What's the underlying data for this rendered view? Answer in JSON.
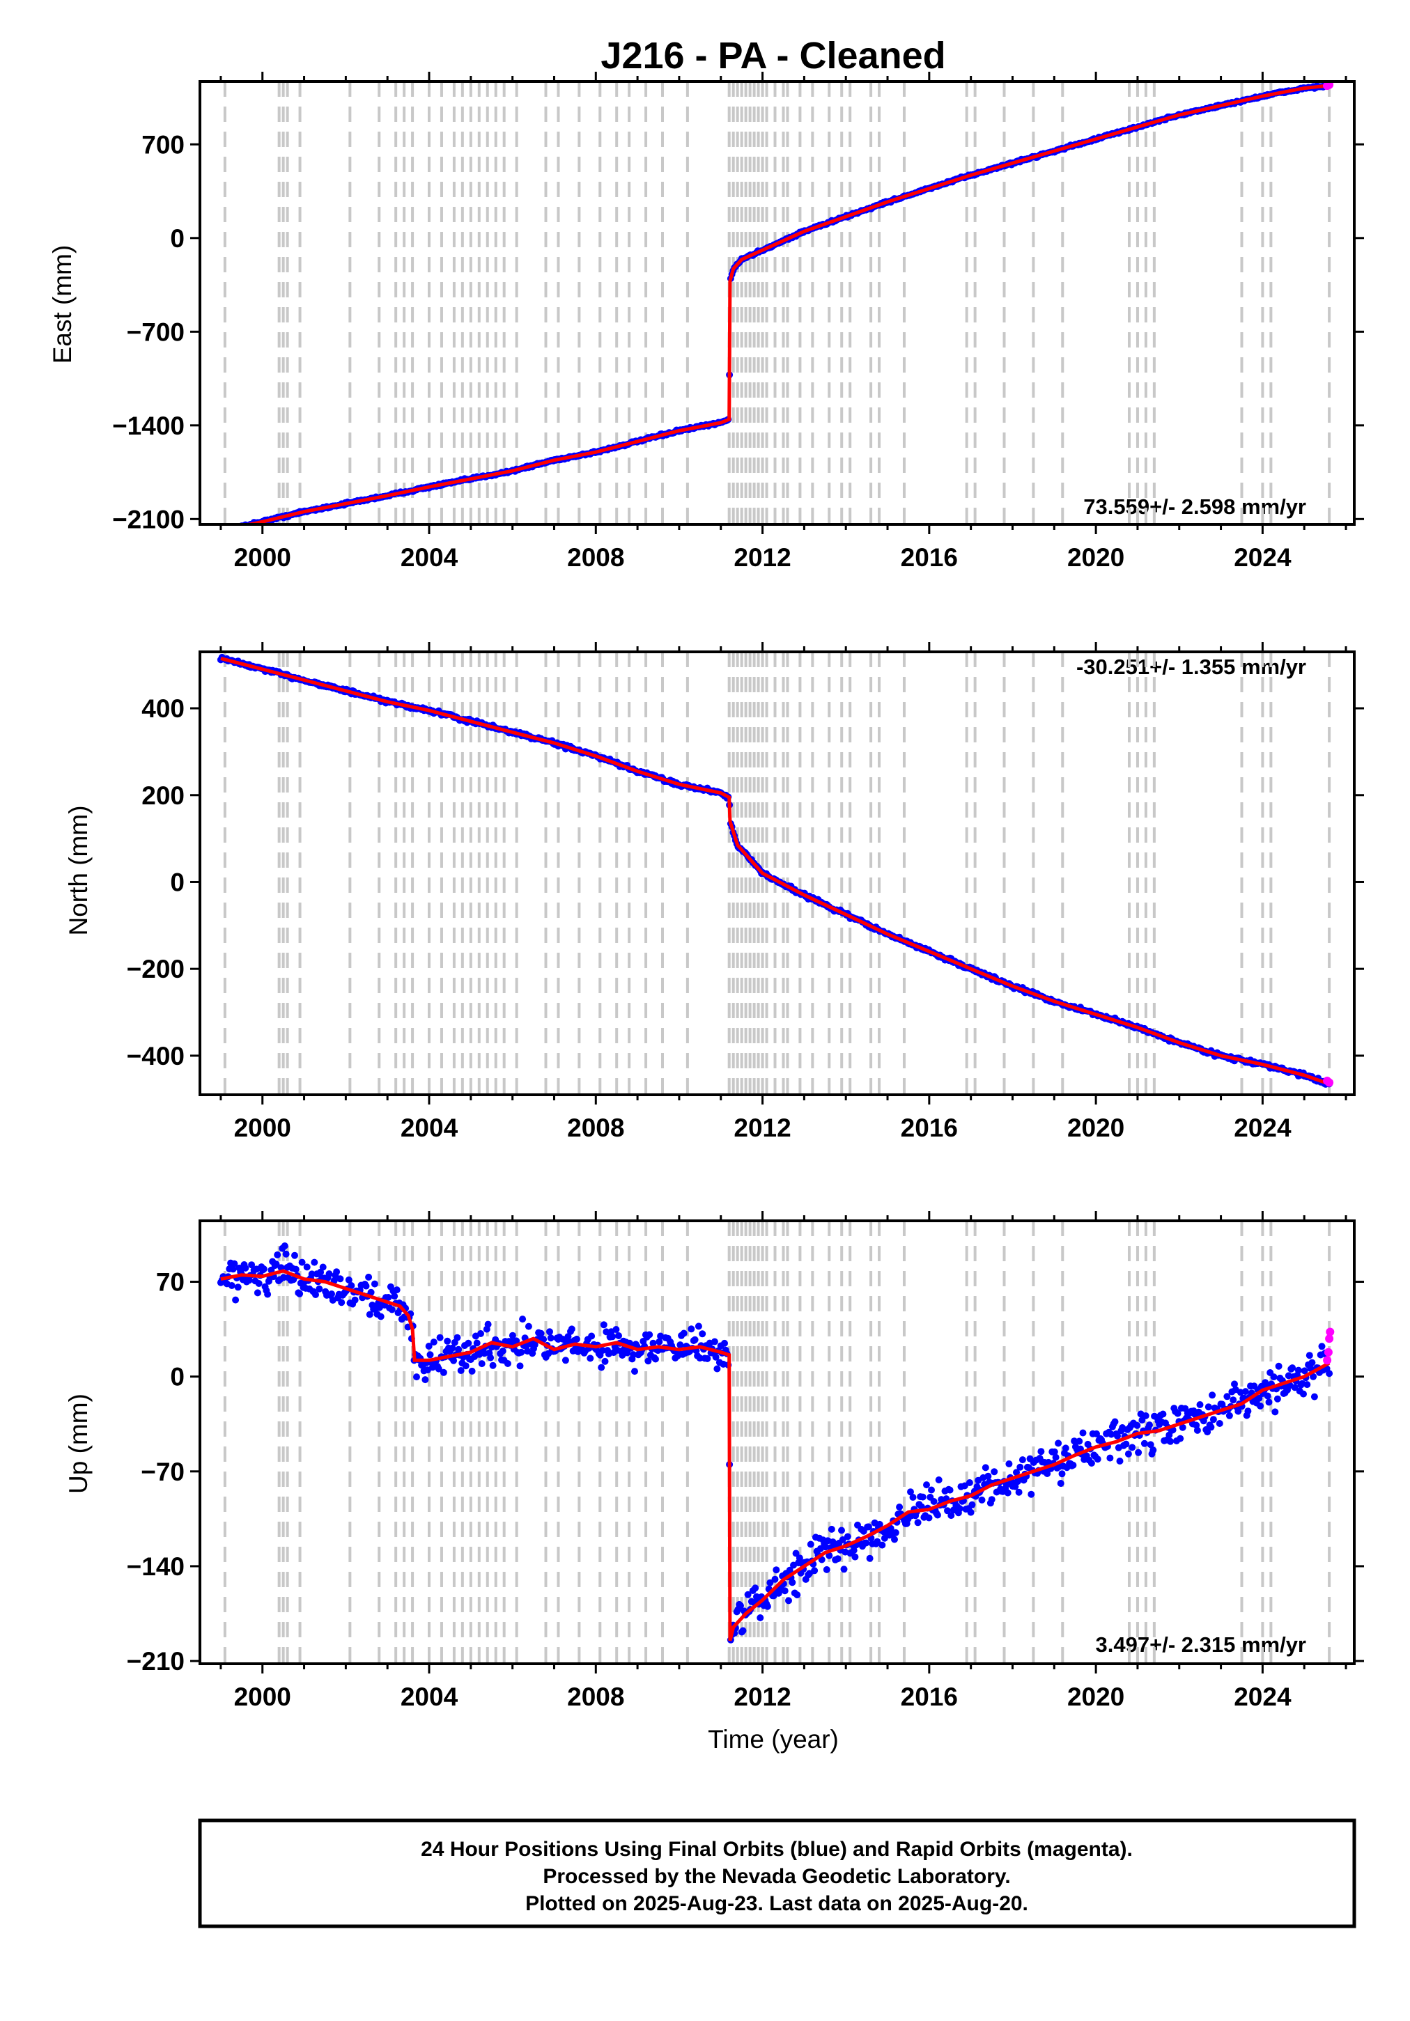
{
  "title": "J216  - PA - Cleaned",
  "xlabel": "Time (year)",
  "x_ticks": [
    "2000",
    "2004",
    "2008",
    "2012",
    "2016",
    "2020",
    "2024"
  ],
  "footer": {
    "line1": "24 Hour Positions Using Final Orbits (blue) and Rapid Orbits (magenta).",
    "line2": "Processed by the Nevada Geodetic Laboratory.",
    "line3": "Plotted on 2025-Aug-23. Last data on 2025-Aug-20."
  },
  "colors": {
    "final_orbits": "#0000ff",
    "rapid_orbits": "#ff00ff",
    "model": "#ff0000",
    "event_lines": "#c8c8c8"
  },
  "event_lines_x": [
    1999.1,
    2000.4,
    2000.5,
    2000.6,
    2000.9,
    2002.1,
    2002.8,
    2003.2,
    2003.4,
    2003.6,
    2004.0,
    2004.3,
    2004.6,
    2004.8,
    2005.0,
    2005.2,
    2005.4,
    2005.6,
    2005.8,
    2006.1,
    2006.8,
    2007.1,
    2007.6,
    2008.1,
    2008.5,
    2008.8,
    2009.2,
    2009.6,
    2010.2,
    2011.2,
    2011.3,
    2011.4,
    2011.5,
    2011.6,
    2011.7,
    2011.8,
    2011.9,
    2012.0,
    2012.1,
    2012.3,
    2012.5,
    2012.6,
    2012.9,
    2013.2,
    2013.6,
    2013.9,
    2014.1,
    2014.6,
    2014.8,
    2015.4,
    2016.9,
    2017.1,
    2017.8,
    2018.5,
    2019.2,
    2020.8,
    2021.0,
    2021.2,
    2021.4,
    2023.5,
    2024.0,
    2024.2,
    2025.6
  ],
  "chart_data": [
    {
      "type": "scatter",
      "ylabel": "East (mm)",
      "xlim": [
        1998.5,
        2026.2
      ],
      "ylim": [
        -2140,
        1170
      ],
      "yticks": [
        -2100,
        -1400,
        -700,
        0,
        700
      ],
      "rate_label": "73.559+/- 2.598 mm/yr",
      "rate_position": "bottom-right",
      "noise": 6,
      "series": [
        {
          "x": [
            1999.0,
            2000.0,
            2001.0,
            2002.0,
            2003.0,
            2004.0,
            2005.0,
            2006.0,
            2007.0,
            2008.0,
            2009.0,
            2010.0,
            2011.0,
            2011.2,
            2011.22,
            2011.3,
            2011.5,
            2012.0,
            2013.0,
            2014.0,
            2015.0,
            2016.0,
            2017.0,
            2018.0,
            2019.0,
            2020.0,
            2021.0,
            2022.0,
            2023.0,
            2024.0,
            2025.0,
            2025.6
          ],
          "y": [
            -2185,
            -2120,
            -2045,
            -1985,
            -1925,
            -1860,
            -1800,
            -1740,
            -1660,
            -1600,
            -1520,
            -1440,
            -1380,
            -1355,
            -320,
            -230,
            -160,
            -90,
            50,
            160,
            270,
            370,
            470,
            560,
            650,
            740,
            830,
            920,
            990,
            1060,
            1120,
            1140
          ]
        }
      ],
      "rapid": {
        "x": [
          2025.55,
          2025.6
        ],
        "y": [
          1138,
          1145
        ]
      }
    },
    {
      "type": "scatter",
      "ylabel": "North (mm)",
      "xlim": [
        1998.5,
        2026.2
      ],
      "ylim": [
        -490,
        530
      ],
      "yticks": [
        -400,
        -200,
        0,
        200,
        400
      ],
      "rate_label": "-30.251+/- 1.355 mm/yr",
      "rate_position": "top-right",
      "noise": 3,
      "series": [
        {
          "x": [
            1999.0,
            2000.0,
            2001.0,
            2002.0,
            2003.0,
            2004.0,
            2005.0,
            2006.0,
            2007.0,
            2008.0,
            2009.0,
            2010.0,
            2011.0,
            2011.2,
            2011.22,
            2011.4,
            2012.0,
            2013.0,
            2014.0,
            2015.0,
            2016.0,
            2017.0,
            2018.0,
            2019.0,
            2020.0,
            2021.0,
            2022.0,
            2023.0,
            2024.0,
            2025.0,
            2025.6
          ],
          "y": [
            515,
            490,
            465,
            440,
            415,
            395,
            370,
            345,
            320,
            290,
            255,
            225,
            205,
            195,
            140,
            85,
            20,
            -30,
            -75,
            -120,
            -160,
            -200,
            -240,
            -275,
            -305,
            -335,
            -370,
            -400,
            -420,
            -445,
            -465
          ]
        }
      ],
      "rapid": {
        "x": [
          2025.55,
          2025.6
        ],
        "y": [
          -458,
          -462
        ]
      }
    },
    {
      "type": "scatter",
      "ylabel": "Up (mm)",
      "xlim": [
        1998.5,
        2026.2
      ],
      "ylim": [
        -212,
        115
      ],
      "yticks": [
        -210,
        -140,
        -70,
        0,
        70
      ],
      "rate_label": "3.497+/- 2.315 mm/yr",
      "rate_position": "bottom-right",
      "noise": 10,
      "series": [
        {
          "x": [
            1999.0,
            1999.5,
            2000.0,
            2000.5,
            2001.0,
            2001.5,
            2002.0,
            2002.5,
            2003.0,
            2003.3,
            2003.5,
            2003.6,
            2003.65,
            2004.0,
            2004.5,
            2005.0,
            2005.5,
            2006.0,
            2006.5,
            2007.0,
            2007.5,
            2008.0,
            2008.5,
            2009.0,
            2009.5,
            2010.0,
            2010.5,
            2011.0,
            2011.2,
            2011.22,
            2011.3,
            2011.6,
            2012.0,
            2012.5,
            2013.0,
            2013.5,
            2014.0,
            2014.5,
            2015.0,
            2015.5,
            2016.0,
            2016.5,
            2017.0,
            2017.5,
            2018.0,
            2018.5,
            2019.0,
            2019.5,
            2020.0,
            2020.5,
            2021.0,
            2021.5,
            2022.0,
            2022.5,
            2023.0,
            2023.5,
            2024.0,
            2024.5,
            2025.0,
            2025.6
          ],
          "y": [
            72,
            75,
            74,
            78,
            72,
            70,
            65,
            60,
            55,
            52,
            45,
            35,
            12,
            12,
            15,
            18,
            25,
            22,
            28,
            20,
            24,
            22,
            25,
            20,
            22,
            20,
            22,
            18,
            16,
            -195,
            -185,
            -175,
            -165,
            -150,
            -140,
            -130,
            -125,
            -118,
            -110,
            -100,
            -98,
            -92,
            -88,
            -80,
            -75,
            -70,
            -65,
            -58,
            -52,
            -48,
            -42,
            -40,
            -35,
            -30,
            -25,
            -20,
            -10,
            -5,
            0,
            10
          ]
        }
      ],
      "rapid": {
        "x": [
          2025.55,
          2025.58,
          2025.6,
          2025.62
        ],
        "y": [
          12,
          18,
          28,
          33
        ]
      }
    }
  ]
}
